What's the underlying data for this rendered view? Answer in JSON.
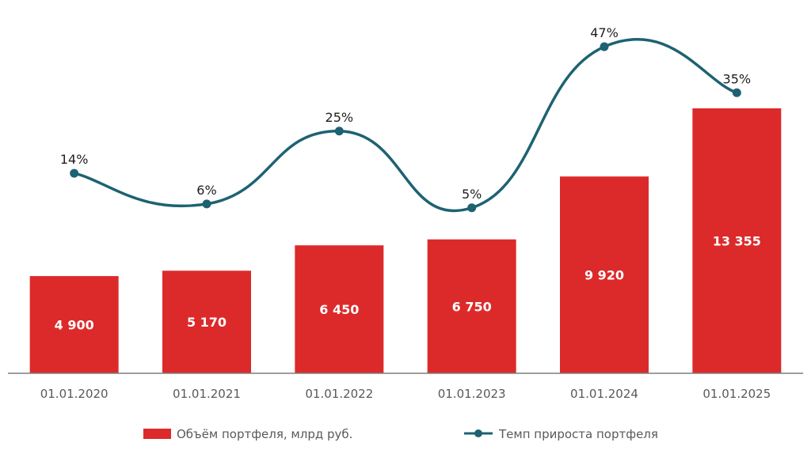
{
  "chart_data": {
    "type": "bar",
    "categories": [
      "01.01.2020",
      "01.01.2021",
      "01.01.2022",
      "01.01.2023",
      "01.01.2024",
      "01.01.2025"
    ],
    "series": [
      {
        "name": "Объём портфеля, млрд руб.",
        "type": "bar",
        "values": [
          4900,
          5170,
          6450,
          6750,
          9920,
          13355
        ],
        "labels": [
          "4 900",
          "5 170",
          "6 450",
          "6 750",
          "9 920",
          "13 355"
        ],
        "color": "#dc2a2a"
      },
      {
        "name": "Темп прироста портфеля",
        "type": "line",
        "values": [
          14,
          6,
          25,
          5,
          47,
          35
        ],
        "labels": [
          "14%",
          "6%",
          "25%",
          "5%",
          "47%",
          "35%"
        ],
        "color": "#1d6272"
      }
    ],
    "legend_position": "bottom",
    "grid": false
  }
}
